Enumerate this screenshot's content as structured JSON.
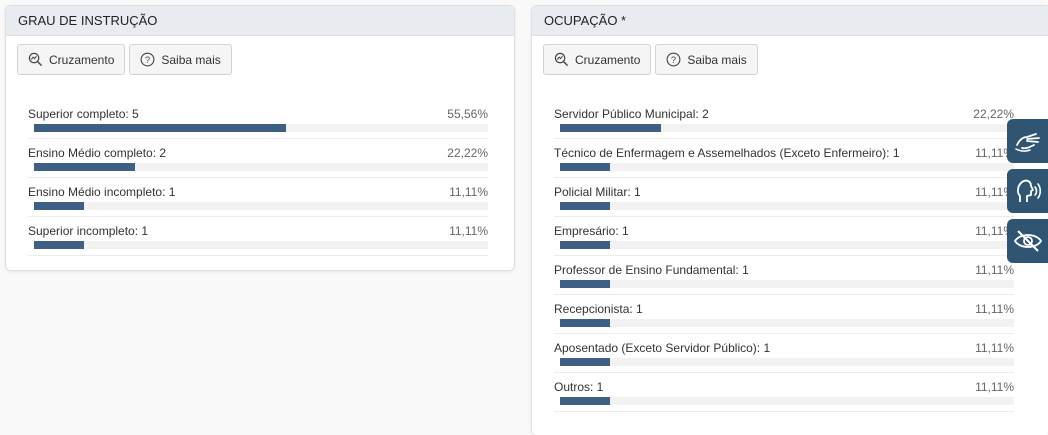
{
  "left_panel": {
    "title": "GRAU DE INSTRUÇÃO",
    "buttons": {
      "cruzamento": "Cruzamento",
      "saiba_mais": "Saiba mais"
    },
    "items": [
      {
        "label": "Superior completo: 5",
        "percent": "55,56%",
        "value": 0.5556
      },
      {
        "label": "Ensino Médio completo: 2",
        "percent": "22,22%",
        "value": 0.2222
      },
      {
        "label": "Ensino Médio incompleto: 1",
        "percent": "11,11%",
        "value": 0.1111
      },
      {
        "label": "Superior incompleto: 1",
        "percent": "11,11%",
        "value": 0.1111
      }
    ]
  },
  "right_panel": {
    "title": "OCUPAÇÃO *",
    "buttons": {
      "cruzamento": "Cruzamento",
      "saiba_mais": "Saiba mais"
    },
    "items": [
      {
        "label": "Servidor Público Municipal: 2",
        "percent": "22,22%",
        "value": 0.2222
      },
      {
        "label": "Técnico de Enfermagem e Assemelhados (Exceto Enfermeiro): 1",
        "percent": "11,11%",
        "value": 0.1111
      },
      {
        "label": "Policial Militar: 1",
        "percent": "11,11%",
        "value": 0.1111
      },
      {
        "label": "Empresário: 1",
        "percent": "11,11%",
        "value": 0.1111
      },
      {
        "label": "Professor de Ensino Fundamental: 1",
        "percent": "11,11%",
        "value": 0.1111
      },
      {
        "label": "Recepcionista: 1",
        "percent": "11,11%",
        "value": 0.1111
      },
      {
        "label": "Aposentado (Exceto Servidor Público): 1",
        "percent": "11,11%",
        "value": 0.1111
      },
      {
        "label": "Outros: 1",
        "percent": "11,11%",
        "value": 0.1111
      }
    ]
  },
  "accessibility": [
    {
      "icon": "sign-language-icon"
    },
    {
      "icon": "speech-icon"
    },
    {
      "icon": "high-contrast-icon"
    }
  ],
  "colors": {
    "bar": "#3f5f84",
    "accessibility_bg": "#2f5573"
  }
}
